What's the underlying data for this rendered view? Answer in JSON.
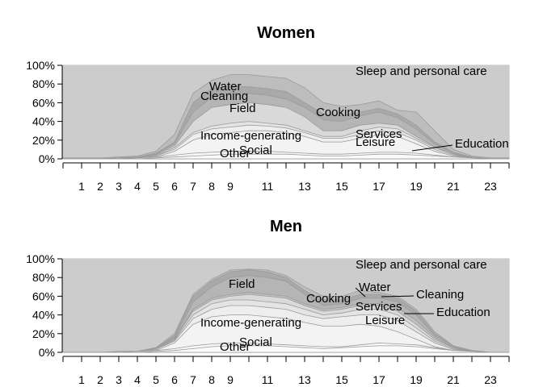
{
  "chart_data": [
    {
      "type": "area",
      "title": "Women",
      "x_ticks": [
        "1",
        "2",
        "3",
        "4",
        "5",
        "6",
        "7",
        "8",
        "9",
        "11",
        "13",
        "15",
        "17",
        "19",
        "21",
        "23"
      ],
      "y_ticks": [
        "0%",
        "20%",
        "40%",
        "60%",
        "80%",
        "100%"
      ],
      "ylim": [
        0,
        100
      ],
      "xlim": [
        0,
        24
      ],
      "boundaries": {
        "hours": [
          0,
          1,
          2,
          3,
          4,
          5,
          6,
          7,
          8,
          9,
          10,
          11,
          12,
          13,
          14,
          15,
          16,
          17,
          18,
          19,
          20,
          21,
          22,
          23,
          24
        ],
        "social_top": [
          0,
          0,
          0,
          0,
          0,
          1,
          2,
          3,
          4,
          5,
          5,
          5,
          5,
          4,
          3,
          3,
          4,
          5,
          5,
          4,
          3,
          2,
          1,
          0,
          0
        ],
        "other_top": [
          0,
          0,
          0,
          0,
          1,
          2,
          4,
          6,
          7,
          8,
          8,
          8,
          7,
          6,
          5,
          5,
          6,
          7,
          7,
          6,
          4,
          2,
          1,
          0,
          0
        ],
        "income_top": [
          0,
          0,
          0,
          0,
          1,
          2,
          8,
          20,
          26,
          28,
          30,
          30,
          28,
          24,
          18,
          18,
          22,
          26,
          24,
          16,
          8,
          3,
          1,
          0,
          0
        ],
        "leisure_top": [
          0,
          0,
          0,
          0,
          1,
          3,
          10,
          26,
          32,
          34,
          36,
          35,
          33,
          28,
          22,
          22,
          26,
          30,
          28,
          20,
          10,
          4,
          1,
          0,
          0
        ],
        "services_top": [
          0,
          0,
          0,
          0,
          1,
          3,
          12,
          28,
          35,
          38,
          40,
          38,
          36,
          30,
          24,
          24,
          30,
          34,
          32,
          22,
          12,
          5,
          1,
          0,
          0
        ],
        "field_top": [
          0,
          0,
          0,
          1,
          1,
          4,
          14,
          40,
          55,
          58,
          60,
          58,
          55,
          45,
          30,
          30,
          36,
          38,
          36,
          24,
          13,
          5,
          1,
          0,
          0
        ],
        "cleaning_top": [
          0,
          0,
          0,
          1,
          2,
          5,
          16,
          50,
          66,
          70,
          70,
          68,
          64,
          55,
          42,
          40,
          46,
          50,
          44,
          32,
          16,
          6,
          1,
          0,
          0
        ],
        "water_top": [
          0,
          0,
          0,
          1,
          2,
          6,
          18,
          60,
          75,
          78,
          77,
          75,
          72,
          60,
          48,
          46,
          50,
          54,
          48,
          36,
          18,
          7,
          2,
          0,
          0
        ],
        "cooking_top": [
          1,
          1,
          1,
          2,
          3,
          8,
          26,
          70,
          84,
          90,
          90,
          88,
          86,
          76,
          60,
          56,
          58,
          62,
          52,
          50,
          30,
          10,
          3,
          1,
          1
        ],
        "sleep_top": [
          100,
          100,
          100,
          100,
          100,
          100,
          100,
          100,
          100,
          100,
          100,
          100,
          100,
          100,
          100,
          100,
          100,
          100,
          100,
          100,
          100,
          100,
          100,
          100,
          100
        ]
      },
      "labels": {
        "sleep": "Sleep and personal care",
        "water": "Water",
        "cleaning": "Cleaning",
        "field": "Field",
        "cooking": "Cooking",
        "income": "Income-generating",
        "services": "Services",
        "leisure": "Leisure",
        "education": "Education",
        "other": "Other",
        "social": "Social"
      }
    },
    {
      "type": "area",
      "title": "Men",
      "x_ticks": [
        "1",
        "2",
        "3",
        "4",
        "5",
        "6",
        "7",
        "8",
        "9",
        "11",
        "13",
        "15",
        "17",
        "19",
        "21",
        "23"
      ],
      "y_ticks": [
        "0%",
        "20%",
        "40%",
        "60%",
        "80%",
        "100%"
      ],
      "ylim": [
        0,
        100
      ],
      "xlim": [
        0,
        24
      ],
      "boundaries": {
        "hours": [
          0,
          1,
          2,
          3,
          4,
          5,
          6,
          7,
          8,
          9,
          10,
          11,
          12,
          13,
          14,
          15,
          16,
          17,
          18,
          19,
          20,
          21,
          22,
          23,
          24
        ],
        "social_top": [
          0,
          0,
          0,
          0,
          0,
          1,
          2,
          4,
          6,
          7,
          7,
          7,
          6,
          5,
          4,
          5,
          6,
          7,
          7,
          6,
          4,
          2,
          1,
          0,
          0
        ],
        "other_top": [
          0,
          0,
          0,
          0,
          1,
          2,
          4,
          7,
          9,
          10,
          10,
          9,
          8,
          7,
          6,
          6,
          8,
          10,
          9,
          8,
          5,
          2,
          1,
          0,
          0
        ],
        "income_top": [
          0,
          0,
          0,
          0,
          1,
          2,
          10,
          30,
          38,
          40,
          40,
          38,
          36,
          32,
          28,
          28,
          30,
          28,
          22,
          14,
          6,
          2,
          1,
          0,
          0
        ],
        "leisure_top": [
          0,
          0,
          0,
          0,
          1,
          3,
          12,
          36,
          46,
          50,
          50,
          48,
          46,
          40,
          36,
          38,
          40,
          40,
          34,
          22,
          10,
          3,
          1,
          0,
          0
        ],
        "services_top": [
          0,
          0,
          0,
          0,
          1,
          3,
          13,
          40,
          52,
          56,
          56,
          54,
          52,
          46,
          40,
          42,
          46,
          46,
          40,
          26,
          12,
          4,
          1,
          0,
          0
        ],
        "field_top": [
          0,
          0,
          0,
          0,
          1,
          4,
          14,
          44,
          56,
          60,
          62,
          60,
          58,
          50,
          44,
          46,
          50,
          50,
          44,
          30,
          14,
          5,
          1,
          0,
          0
        ],
        "education_top": [
          0,
          0,
          0,
          0,
          1,
          4,
          15,
          46,
          58,
          62,
          64,
          62,
          60,
          52,
          46,
          48,
          52,
          52,
          48,
          34,
          16,
          5,
          1,
          0,
          0
        ],
        "cleaning_top": [
          0,
          0,
          0,
          0,
          1,
          4,
          16,
          54,
          70,
          80,
          82,
          80,
          76,
          62,
          50,
          52,
          58,
          58,
          54,
          40,
          18,
          6,
          1,
          0,
          0
        ],
        "water_top": [
          0,
          0,
          0,
          0,
          1,
          5,
          18,
          60,
          76,
          86,
          88,
          86,
          80,
          66,
          56,
          56,
          62,
          62,
          58,
          44,
          20,
          7,
          2,
          0,
          0
        ],
        "cooking_top": [
          0,
          0,
          0,
          1,
          1,
          5,
          20,
          62,
          78,
          88,
          89,
          88,
          82,
          70,
          60,
          60,
          66,
          64,
          60,
          46,
          22,
          7,
          2,
          0,
          0
        ],
        "sleep_top": [
          100,
          100,
          100,
          100,
          100,
          100,
          100,
          100,
          100,
          100,
          100,
          100,
          100,
          100,
          100,
          100,
          100,
          100,
          100,
          100,
          100,
          100,
          100,
          100,
          100
        ]
      },
      "labels": {
        "sleep": "Sleep and personal care",
        "water": "Water",
        "cleaning": "Cleaning",
        "field": "Field",
        "cooking": "Cooking",
        "income": "Income-generating",
        "services": "Services",
        "leisure": "Leisure",
        "education": "Education",
        "other": "Other",
        "social": "Social"
      }
    }
  ]
}
